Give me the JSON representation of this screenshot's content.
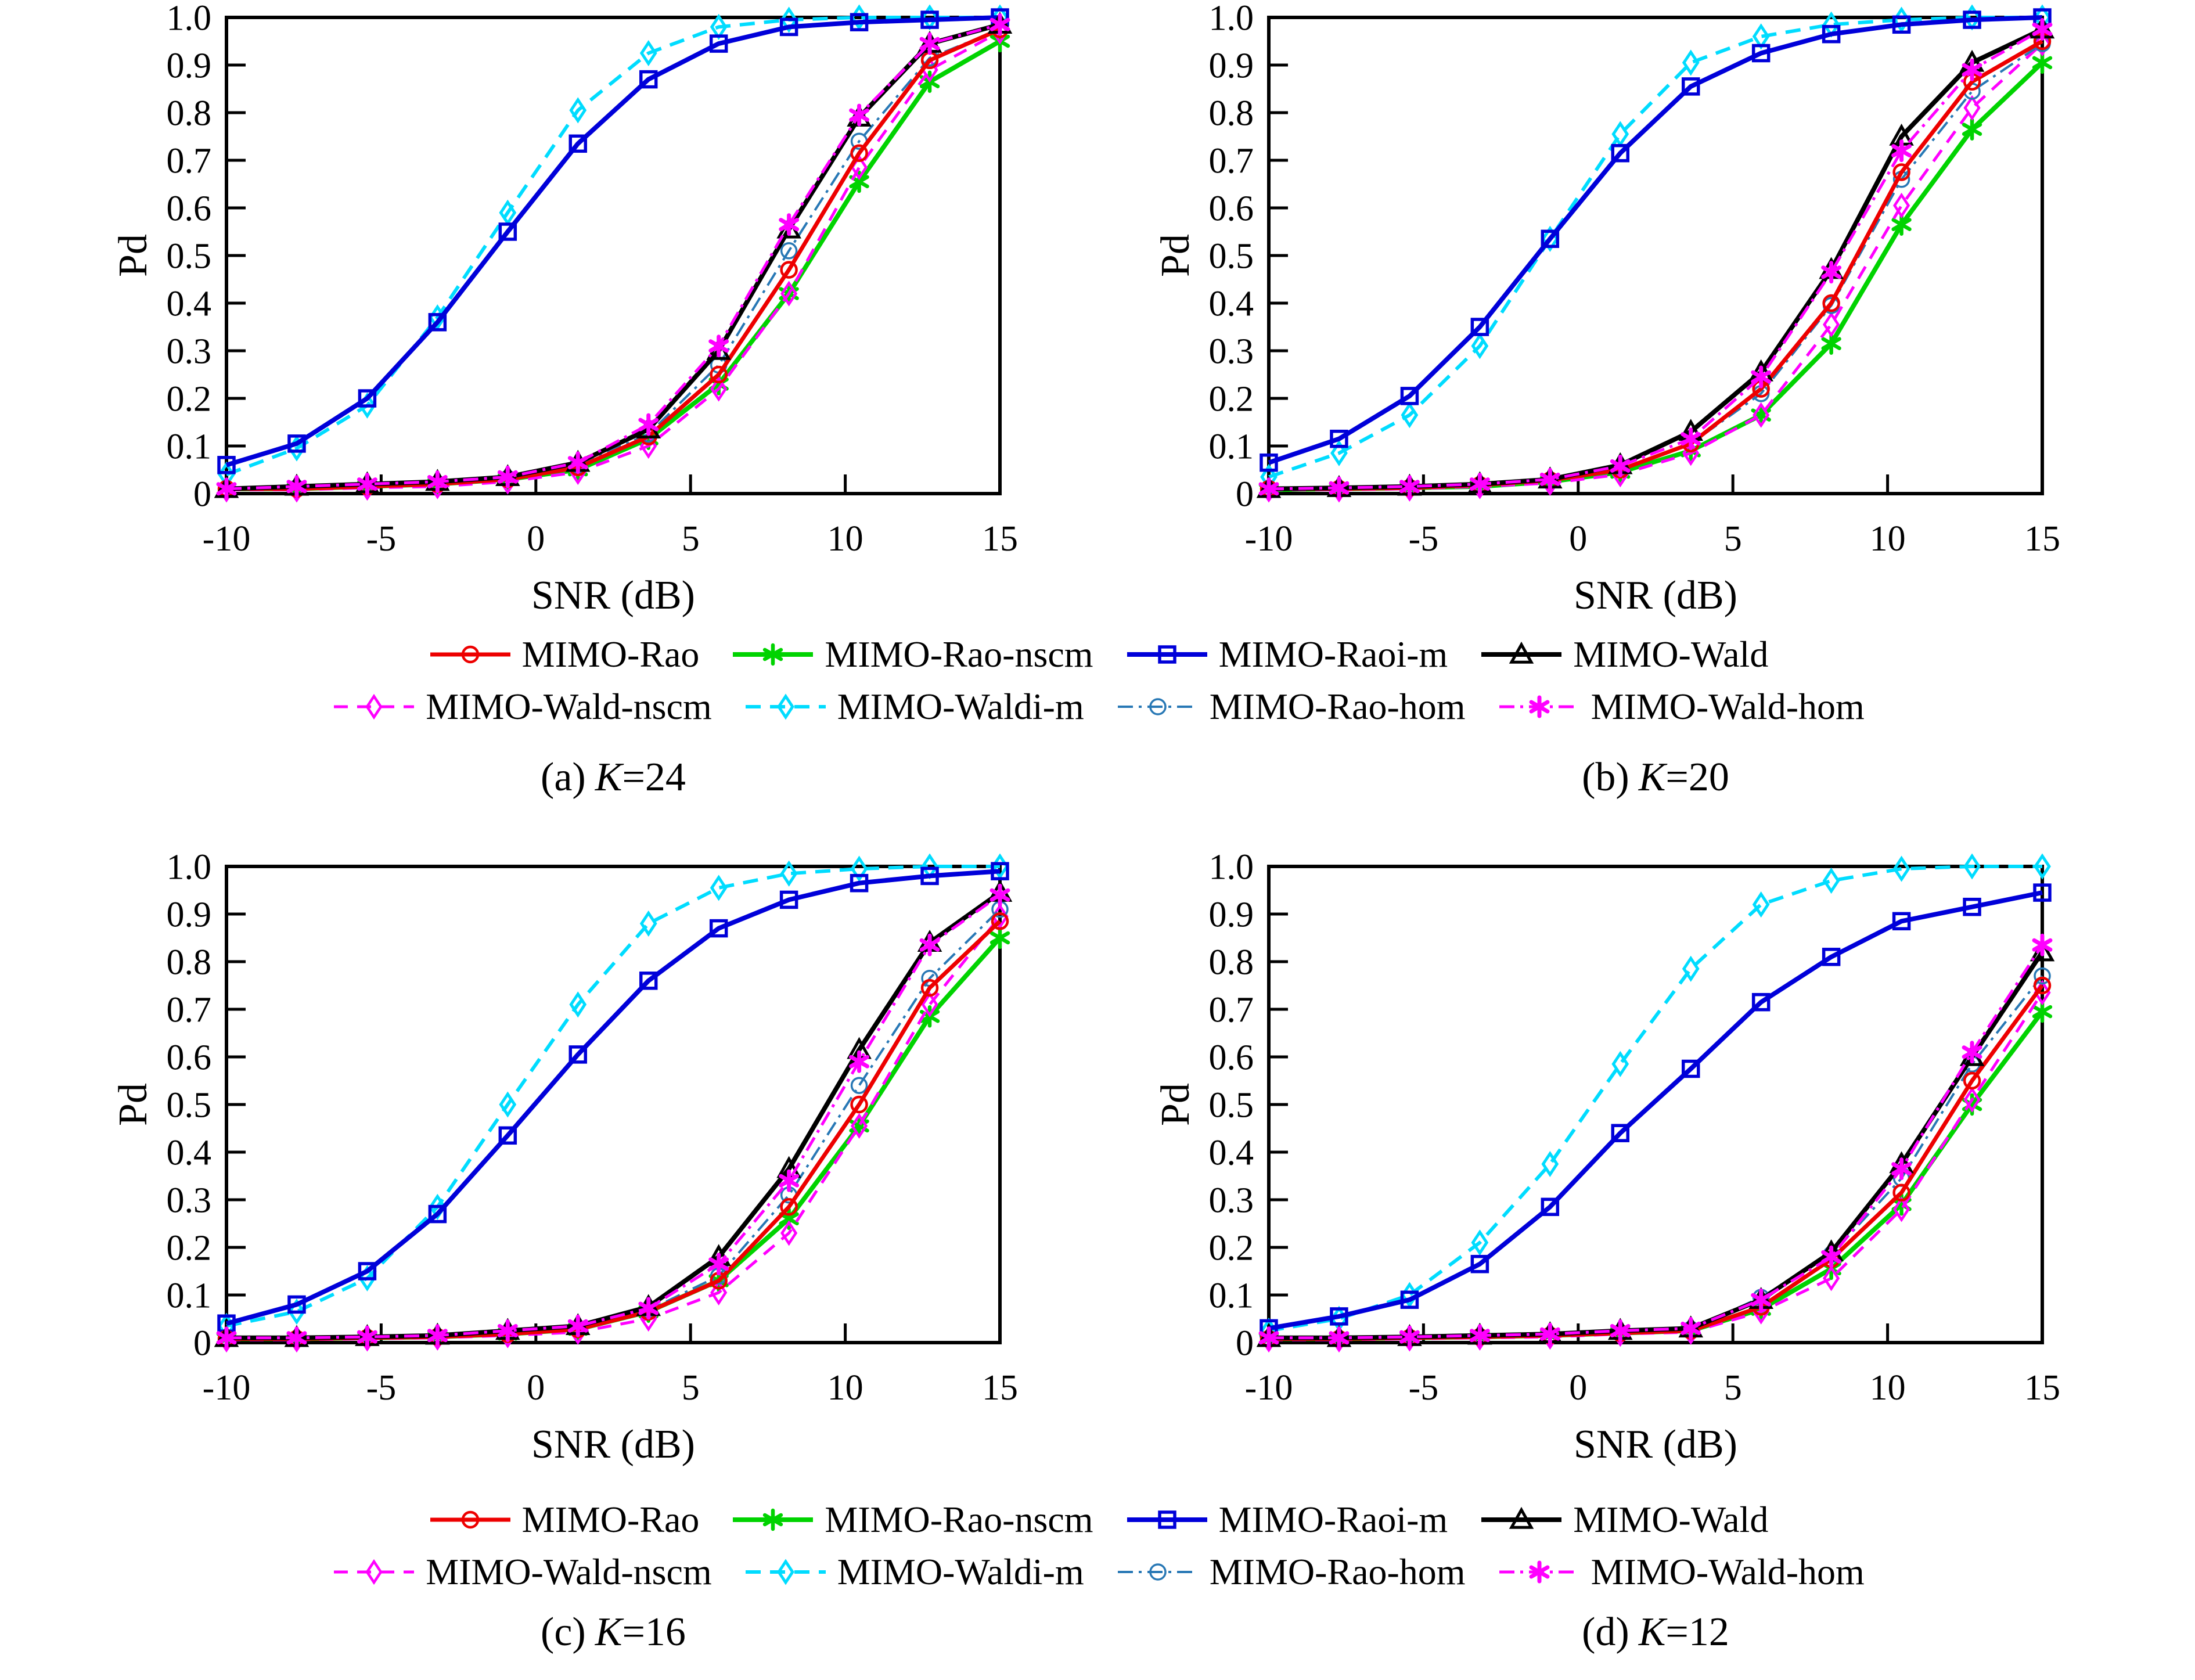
{
  "figure": {
    "background": "#ffffff",
    "description_title": "Pd versus SNR curves for MIMO detectors, four sample-support cases"
  },
  "axes": {
    "x_label": "SNR (dB)",
    "y_label": "Pd",
    "xlim": [
      -10,
      15
    ],
    "ylim": [
      0,
      1
    ],
    "grid": false,
    "x_ticks": {
      "values": [
        -10,
        -5,
        0,
        5,
        10,
        15
      ],
      "labels": [
        "-10",
        "-5",
        "0",
        "5",
        "10",
        "15"
      ]
    },
    "y_ticks": {
      "values": [
        0,
        0.1,
        0.2,
        0.3,
        0.4,
        0.5,
        0.6,
        0.7,
        0.8,
        0.9,
        1.0
      ],
      "labels": [
        "0",
        "0.1",
        "0.2",
        "0.3",
        "0.4",
        "0.5",
        "0.6",
        "0.7",
        "0.8",
        "0.9",
        "1.0"
      ]
    }
  },
  "series_styles": {
    "rao": {
      "label": "MIMO-Rao",
      "color": "#ed0000",
      "dash": "",
      "lw": 7,
      "marker": "circle",
      "msw": 4.5,
      "msize": 13
    },
    "rao_nscm": {
      "label": "MIMO-Rao-nscm",
      "color": "#00d300",
      "dash": "",
      "lw": 8,
      "marker": "star",
      "msw": 6.5,
      "msize": 16
    },
    "raoi_m": {
      "label": "MIMO-Raoi-m",
      "color": "#0000d9",
      "dash": "",
      "lw": 8,
      "marker": "square",
      "msw": 5.5,
      "msize": 13
    },
    "wald": {
      "label": "MIMO-Wald",
      "color": "#000000",
      "dash": "",
      "lw": 8,
      "marker": "triangle",
      "msw": 5,
      "msize": 17
    },
    "wald_nscm": {
      "label": "MIMO-Wald-nscm",
      "color": "#ff00ff",
      "dash": "24 16",
      "lw": 5,
      "marker": "diamond",
      "msw": 4.5,
      "msize": 18
    },
    "waldi_m": {
      "label": "MIMO-Waldi-m",
      "color": "#00dcff",
      "dash": "26 16",
      "lw": 6,
      "marker": "diamond",
      "msw": 5,
      "msize": 18
    },
    "rao_hom": {
      "label": "MIMO-Rao-hom",
      "color": "#2878b5",
      "dash": "26 10 5 10",
      "lw": 4,
      "marker": "circle",
      "msw": 3.5,
      "msize": 13
    },
    "wald_hom": {
      "label": "MIMO-Wald-hom",
      "color": "#ff00ff",
      "dash": "26 10 5 10",
      "lw": 5,
      "marker": "star",
      "msw": 7,
      "msize": 16
    }
  },
  "draw_order": [
    "waldi_m",
    "raoi_m",
    "rao_nscm",
    "wald_nscm",
    "rao_hom",
    "rao",
    "wald",
    "wald_hom"
  ],
  "legend": {
    "position": "below-charts, repeated for each row of subplots",
    "rows": [
      [
        "rao",
        "rao_nscm",
        "raoi_m",
        "wald"
      ],
      [
        "wald_nscm",
        "waldi_m",
        "rao_hom",
        "wald_hom"
      ]
    ]
  },
  "chart_data": [
    {
      "id": "a",
      "type": "line",
      "caption": {
        "prefix": "(a)",
        "k": "K",
        "suffix": "=24"
      },
      "xlabel": "SNR (dB)",
      "ylabel": "Pd",
      "x": [
        -10,
        -7.73,
        -5.45,
        -3.18,
        -0.91,
        1.36,
        3.64,
        5.91,
        8.18,
        10.45,
        12.73,
        15
      ],
      "series": [
        {
          "name": "rao",
          "values": [
            0.01,
            0.01,
            0.015,
            0.02,
            0.03,
            0.055,
            0.12,
            0.25,
            0.47,
            0.715,
            0.91,
            0.975
          ]
        },
        {
          "name": "rao_nscm",
          "values": [
            0.01,
            0.01,
            0.015,
            0.02,
            0.03,
            0.05,
            0.115,
            0.23,
            0.42,
            0.655,
            0.865,
            0.95
          ]
        },
        {
          "name": "raoi_m",
          "values": [
            0.06,
            0.105,
            0.2,
            0.36,
            0.55,
            0.735,
            0.87,
            0.945,
            0.98,
            0.99,
            0.995,
            1.0
          ]
        },
        {
          "name": "wald",
          "values": [
            0.01,
            0.015,
            0.02,
            0.025,
            0.035,
            0.065,
            0.135,
            0.3,
            0.555,
            0.79,
            0.945,
            0.985
          ]
        },
        {
          "name": "wald_nscm",
          "values": [
            0.008,
            0.008,
            0.012,
            0.015,
            0.025,
            0.045,
            0.1,
            0.22,
            0.42,
            0.685,
            0.89,
            0.97
          ]
        },
        {
          "name": "waldi_m",
          "values": [
            0.04,
            0.095,
            0.185,
            0.37,
            0.59,
            0.805,
            0.925,
            0.98,
            0.995,
            1.0,
            1.0,
            1.0
          ]
        },
        {
          "name": "rao_hom",
          "values": [
            0.01,
            0.012,
            0.015,
            0.02,
            0.032,
            0.06,
            0.125,
            0.27,
            0.51,
            0.74,
            0.915,
            0.975
          ]
        },
        {
          "name": "wald_hom",
          "values": [
            0.01,
            0.015,
            0.02,
            0.025,
            0.035,
            0.065,
            0.145,
            0.31,
            0.565,
            0.795,
            0.945,
            0.985
          ]
        }
      ]
    },
    {
      "id": "b",
      "type": "line",
      "caption": {
        "prefix": "(b)",
        "k": "K",
        "suffix": "=20"
      },
      "xlabel": "SNR (dB)",
      "ylabel": "Pd",
      "x": [
        -10,
        -7.73,
        -5.45,
        -3.18,
        -0.91,
        1.36,
        3.64,
        5.91,
        8.18,
        10.45,
        12.73,
        15
      ],
      "series": [
        {
          "name": "rao",
          "values": [
            0.01,
            0.01,
            0.012,
            0.018,
            0.028,
            0.05,
            0.105,
            0.22,
            0.4,
            0.675,
            0.865,
            0.95
          ]
        },
        {
          "name": "rao_nscm",
          "values": [
            0.008,
            0.01,
            0.012,
            0.015,
            0.025,
            0.045,
            0.09,
            0.165,
            0.315,
            0.565,
            0.765,
            0.905
          ]
        },
        {
          "name": "raoi_m",
          "values": [
            0.065,
            0.115,
            0.205,
            0.35,
            0.535,
            0.715,
            0.855,
            0.925,
            0.965,
            0.985,
            0.995,
            1.0
          ]
        },
        {
          "name": "wald",
          "values": [
            0.01,
            0.012,
            0.015,
            0.02,
            0.03,
            0.06,
            0.13,
            0.255,
            0.47,
            0.75,
            0.905,
            0.975
          ]
        },
        {
          "name": "wald_nscm",
          "values": [
            0.008,
            0.008,
            0.01,
            0.015,
            0.022,
            0.04,
            0.085,
            0.165,
            0.355,
            0.605,
            0.81,
            0.945
          ]
        },
        {
          "name": "waldi_m",
          "values": [
            0.035,
            0.085,
            0.165,
            0.31,
            0.535,
            0.755,
            0.905,
            0.96,
            0.985,
            0.995,
            1.0,
            1.0
          ]
        },
        {
          "name": "rao_hom",
          "values": [
            0.01,
            0.01,
            0.012,
            0.018,
            0.028,
            0.05,
            0.105,
            0.21,
            0.395,
            0.66,
            0.845,
            0.945
          ]
        },
        {
          "name": "wald_hom",
          "values": [
            0.01,
            0.012,
            0.015,
            0.02,
            0.03,
            0.058,
            0.115,
            0.245,
            0.465,
            0.72,
            0.89,
            0.975
          ]
        }
      ]
    },
    {
      "id": "c",
      "type": "line",
      "caption": {
        "prefix": "(c)",
        "k": "K",
        "suffix": "=16"
      },
      "xlabel": "SNR (dB)",
      "ylabel": "Pd",
      "x": [
        -10,
        -7.73,
        -5.45,
        -3.18,
        -0.91,
        1.36,
        3.64,
        5.91,
        8.18,
        10.45,
        12.73,
        15
      ],
      "series": [
        {
          "name": "rao",
          "values": [
            0.008,
            0.008,
            0.01,
            0.012,
            0.018,
            0.028,
            0.065,
            0.13,
            0.285,
            0.5,
            0.745,
            0.885
          ]
        },
        {
          "name": "rao_nscm",
          "values": [
            0.008,
            0.008,
            0.01,
            0.012,
            0.018,
            0.028,
            0.065,
            0.13,
            0.26,
            0.455,
            0.685,
            0.85
          ]
        },
        {
          "name": "raoi_m",
          "values": [
            0.04,
            0.08,
            0.15,
            0.27,
            0.435,
            0.605,
            0.76,
            0.87,
            0.93,
            0.965,
            0.98,
            0.99
          ]
        },
        {
          "name": "wald",
          "values": [
            0.01,
            0.01,
            0.012,
            0.015,
            0.025,
            0.035,
            0.075,
            0.18,
            0.365,
            0.615,
            0.84,
            0.945
          ]
        },
        {
          "name": "wald_nscm",
          "values": [
            0.006,
            0.006,
            0.008,
            0.01,
            0.015,
            0.022,
            0.05,
            0.105,
            0.23,
            0.455,
            0.71,
            0.895
          ]
        },
        {
          "name": "waldi_m",
          "values": [
            0.035,
            0.065,
            0.135,
            0.285,
            0.5,
            0.71,
            0.88,
            0.955,
            0.985,
            0.995,
            1.0,
            1.0
          ]
        },
        {
          "name": "rao_hom",
          "values": [
            0.008,
            0.008,
            0.01,
            0.012,
            0.02,
            0.03,
            0.068,
            0.14,
            0.31,
            0.54,
            0.765,
            0.91
          ]
        },
        {
          "name": "wald_hom",
          "values": [
            0.01,
            0.01,
            0.012,
            0.015,
            0.025,
            0.035,
            0.072,
            0.165,
            0.34,
            0.59,
            0.835,
            0.94
          ]
        }
      ]
    },
    {
      "id": "d",
      "type": "line",
      "caption": {
        "prefix": "(d)",
        "k": "K",
        "suffix": "=12"
      },
      "xlabel": "SNR (dB)",
      "ylabel": "Pd",
      "x": [
        -10,
        -7.73,
        -5.45,
        -3.18,
        -0.91,
        1.36,
        3.64,
        5.91,
        8.18,
        10.45,
        12.73,
        15
      ],
      "series": [
        {
          "name": "rao",
          "values": [
            0.008,
            0.008,
            0.01,
            0.012,
            0.015,
            0.02,
            0.025,
            0.075,
            0.175,
            0.315,
            0.55,
            0.75
          ]
        },
        {
          "name": "rao_nscm",
          "values": [
            0.008,
            0.008,
            0.01,
            0.012,
            0.015,
            0.02,
            0.025,
            0.07,
            0.155,
            0.29,
            0.5,
            0.695
          ]
        },
        {
          "name": "raoi_m",
          "values": [
            0.03,
            0.055,
            0.09,
            0.165,
            0.285,
            0.44,
            0.575,
            0.715,
            0.81,
            0.885,
            0.915,
            0.945
          ]
        },
        {
          "name": "wald",
          "values": [
            0.01,
            0.01,
            0.012,
            0.015,
            0.018,
            0.025,
            0.03,
            0.09,
            0.19,
            0.375,
            0.6,
            0.82
          ]
        },
        {
          "name": "wald_nscm",
          "values": [
            0.006,
            0.006,
            0.008,
            0.01,
            0.012,
            0.018,
            0.022,
            0.065,
            0.135,
            0.28,
            0.51,
            0.735
          ]
        },
        {
          "name": "waldi_m",
          "values": [
            0.025,
            0.05,
            0.1,
            0.21,
            0.375,
            0.585,
            0.785,
            0.92,
            0.97,
            0.995,
            1.0,
            1.0
          ]
        },
        {
          "name": "rao_hom",
          "values": [
            0.008,
            0.008,
            0.01,
            0.012,
            0.015,
            0.02,
            0.028,
            0.095,
            0.185,
            0.345,
            0.585,
            0.77
          ]
        },
        {
          "name": "wald_hom",
          "values": [
            0.01,
            0.01,
            0.012,
            0.015,
            0.018,
            0.025,
            0.03,
            0.09,
            0.18,
            0.365,
            0.61,
            0.835
          ]
        }
      ]
    }
  ]
}
